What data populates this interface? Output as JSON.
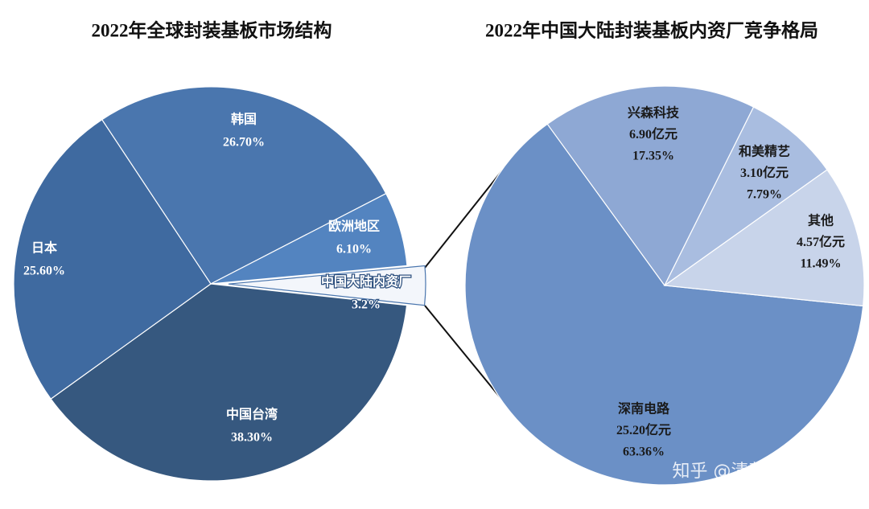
{
  "chart_data": [
    {
      "type": "pie",
      "title": "2022年全球封装基板市场结构",
      "categories": [
        "中国大陆内资厂",
        "中国台湾",
        "日本",
        "韩国",
        "欧洲地区"
      ],
      "values": [
        3.2,
        38.3,
        25.6,
        26.7,
        6.1
      ],
      "value_labels": [
        "3.2%",
        "38.30%",
        "25.60%",
        "26.70%",
        "6.10%"
      ],
      "colors": [
        "#f3f6fb",
        "#36587f",
        "#3f6aa0",
        "#4a76ae",
        "#5384c0"
      ]
    },
    {
      "type": "pie",
      "title": "2022年中国大陆封装基板内资厂竞争格局",
      "categories": [
        "深南电路",
        "兴森科技",
        "和美精艺",
        "其他"
      ],
      "values": [
        63.36,
        17.35,
        7.79,
        11.49
      ],
      "value_labels": [
        "63.36%",
        "17.35%",
        "7.79%",
        "11.49%"
      ],
      "amounts": [
        25.2,
        6.9,
        3.1,
        4.57
      ],
      "amount_labels": [
        "25.20亿元",
        "6.90亿元",
        "3.10亿元",
        "4.57亿元"
      ],
      "colors": [
        "#6b90c6",
        "#8ea8d4",
        "#a9bde0",
        "#c8d4ea"
      ]
    }
  ],
  "watermark": "知乎 @清荼荟"
}
